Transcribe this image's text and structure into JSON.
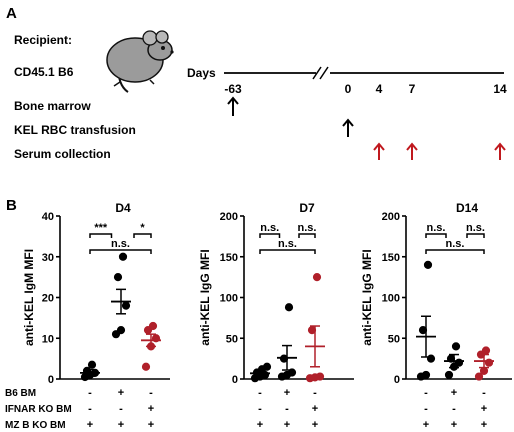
{
  "panel_a": {
    "label": "A",
    "recipient_title": "Recipient:",
    "strain": "CD45.1 B6",
    "days_label": "Days",
    "day_ticks": [
      "-63",
      "0",
      "4",
      "7",
      "14"
    ],
    "rows": [
      "Bone marrow",
      "KEL RBC transfusion",
      "Serum collection"
    ],
    "arrow_color_black": "#000000",
    "arrow_color_red": "#c0191e"
  },
  "panel_b": {
    "label": "B",
    "row_labels": [
      "B6 BM",
      "IFNAR KO BM",
      "MZ B KO BM"
    ],
    "group_signs": [
      [
        "-",
        "+",
        "-"
      ],
      [
        "-",
        "-",
        "+"
      ],
      [
        "+",
        "+",
        "+"
      ]
    ],
    "colors": {
      "black": "#000000",
      "red": "#b0202a"
    }
  },
  "chart_data": [
    {
      "type": "scatter",
      "title": "D4",
      "ylabel": "anti-KEL IgM MFI",
      "ylim": [
        0,
        40
      ],
      "yticks": [
        "0",
        "10",
        "20",
        "30",
        "40"
      ],
      "groups": [
        {
          "mean": 1.5,
          "sem": 0.8,
          "marker": "circle",
          "color": "#000000",
          "points": [
            0.5,
            1.0,
            1.5,
            2.0,
            3.5
          ]
        },
        {
          "mean": 19,
          "sem": 3,
          "marker": "circle",
          "color": "#000000",
          "points": [
            11,
            12,
            18,
            25,
            30
          ]
        },
        {
          "mean": 9.5,
          "sem": 1.5,
          "marker": "circle-open",
          "color": "#b0202a",
          "points": [
            3,
            8,
            10,
            12,
            13
          ]
        }
      ],
      "significance": [
        {
          "pair": [
            0,
            1
          ],
          "label": "***"
        },
        {
          "pair": [
            1,
            2
          ],
          "label": "*"
        },
        {
          "pair": [
            0,
            2
          ],
          "label": "n.s."
        }
      ]
    },
    {
      "type": "scatter",
      "title": "D7",
      "ylabel": "anti-KEL IgG MFI",
      "ylim": [
        0,
        200
      ],
      "yticks": [
        "0",
        "50",
        "100",
        "150",
        "200"
      ],
      "groups": [
        {
          "mean": 7,
          "sem": 3,
          "marker": "circle",
          "color": "#000000",
          "points": [
            1,
            3,
            5,
            8,
            12,
            15
          ]
        },
        {
          "mean": 26,
          "sem": 15,
          "marker": "circle",
          "color": "#000000",
          "points": [
            3,
            5,
            8,
            25,
            88
          ]
        },
        {
          "mean": 40,
          "sem": 25,
          "marker": "circle-open",
          "color": "#b0202a",
          "points": [
            1,
            2,
            3,
            60,
            125
          ]
        }
      ],
      "significance": [
        {
          "pair": [
            0,
            1
          ],
          "label": "n.s."
        },
        {
          "pair": [
            1,
            2
          ],
          "label": "n.s."
        },
        {
          "pair": [
            0,
            2
          ],
          "label": "n.s."
        }
      ]
    },
    {
      "type": "scatter",
      "title": "D14",
      "ylabel": "anti-KEL IgG MFI",
      "ylim": [
        0,
        200
      ],
      "yticks": [
        "0",
        "50",
        "100",
        "150",
        "200"
      ],
      "groups": [
        {
          "mean": 52,
          "sem": 25,
          "marker": "circle",
          "color": "#000000",
          "points": [
            3,
            5,
            25,
            60,
            140
          ]
        },
        {
          "mean": 22,
          "sem": 8,
          "marker": "circle",
          "color": "#000000",
          "points": [
            5,
            15,
            20,
            25,
            40
          ]
        },
        {
          "mean": 22,
          "sem": 8,
          "marker": "circle-open",
          "color": "#b0202a",
          "points": [
            3,
            10,
            20,
            30,
            35
          ]
        }
      ],
      "significance": [
        {
          "pair": [
            0,
            1
          ],
          "label": "n.s."
        },
        {
          "pair": [
            1,
            2
          ],
          "label": "n.s."
        },
        {
          "pair": [
            0,
            2
          ],
          "label": "n.s."
        }
      ]
    }
  ]
}
